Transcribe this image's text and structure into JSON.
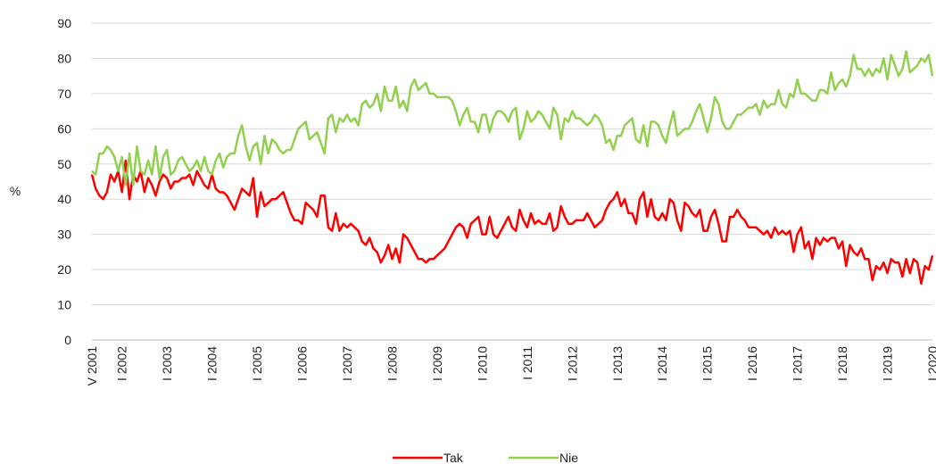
{
  "chart_data": {
    "type": "line",
    "y_label": "%",
    "categories": [
      "V 2001",
      null,
      null,
      null,
      null,
      null,
      null,
      null,
      "I 2002",
      null,
      null,
      null,
      null,
      null,
      null,
      null,
      null,
      null,
      null,
      null,
      "I 2003",
      null,
      null,
      null,
      null,
      null,
      null,
      null,
      null,
      null,
      null,
      null,
      "I 2004",
      null,
      null,
      null,
      null,
      null,
      null,
      null,
      null,
      null,
      null,
      null,
      "I 2005",
      null,
      null,
      null,
      null,
      null,
      null,
      null,
      null,
      null,
      null,
      null,
      "I 2006",
      null,
      null,
      null,
      null,
      null,
      null,
      null,
      null,
      null,
      null,
      null,
      "I 2007",
      null,
      null,
      null,
      null,
      null,
      null,
      null,
      null,
      null,
      null,
      null,
      "I 2008",
      null,
      null,
      null,
      null,
      null,
      null,
      null,
      null,
      null,
      null,
      null,
      "I 2009",
      null,
      null,
      null,
      null,
      null,
      null,
      null,
      null,
      null,
      null,
      null,
      "I 2010",
      null,
      null,
      null,
      null,
      null,
      null,
      null,
      null,
      null,
      null,
      null,
      "I 2011",
      null,
      null,
      null,
      null,
      null,
      null,
      null,
      null,
      null,
      null,
      null,
      "I 2012",
      null,
      null,
      null,
      null,
      null,
      null,
      null,
      null,
      null,
      null,
      null,
      "I 2013",
      null,
      null,
      null,
      null,
      null,
      null,
      null,
      null,
      null,
      null,
      null,
      "I 2014",
      null,
      null,
      null,
      null,
      null,
      null,
      null,
      null,
      null,
      null,
      null,
      "I 2015",
      null,
      null,
      null,
      null,
      null,
      null,
      null,
      null,
      null,
      null,
      null,
      "I 2016",
      null,
      null,
      null,
      null,
      null,
      null,
      null,
      null,
      null,
      null,
      null,
      "I 2017",
      null,
      null,
      null,
      null,
      null,
      null,
      null,
      null,
      null,
      null,
      null,
      "I 2018",
      null,
      null,
      null,
      null,
      null,
      null,
      null,
      null,
      null,
      null,
      null,
      "I 2019",
      null,
      null,
      null,
      null,
      null,
      null,
      null,
      null,
      null,
      null,
      null,
      "I 2020"
    ],
    "series": [
      {
        "name": "Tak",
        "color": "#ff0000",
        "values": [
          47,
          43,
          41,
          40,
          42,
          47,
          45,
          48,
          42,
          51,
          40,
          47,
          45,
          48,
          42,
          46,
          44,
          41,
          45,
          47,
          46,
          43,
          45,
          45,
          46,
          46,
          47,
          44,
          48,
          46,
          44,
          43,
          47,
          43,
          42,
          42,
          41,
          39,
          37,
          40,
          43,
          42,
          41,
          46,
          35,
          42,
          38,
          39,
          40,
          40,
          41,
          42,
          39,
          36,
          34,
          34,
          33,
          39,
          38,
          37,
          35,
          41,
          41,
          32,
          31,
          36,
          31,
          33,
          32,
          33,
          32,
          31,
          28,
          27,
          29,
          26,
          25,
          22,
          24,
          27,
          23,
          26,
          22,
          30,
          29,
          27,
          25,
          23,
          23,
          22,
          23,
          23,
          24,
          25,
          26,
          28,
          30,
          32,
          33,
          32,
          29,
          33,
          34,
          35,
          30,
          30,
          35,
          30,
          29,
          31,
          33,
          35,
          32,
          31,
          37,
          34,
          32,
          36,
          33,
          34,
          33,
          33,
          36,
          31,
          32,
          38,
          35,
          33,
          33,
          34,
          34,
          34,
          36,
          34,
          32,
          33,
          34,
          37,
          39,
          40,
          42,
          38,
          40,
          36,
          36,
          33,
          40,
          42,
          35,
          40,
          35,
          34,
          36,
          34,
          40,
          39,
          34,
          31,
          39,
          38,
          36,
          35,
          37,
          31,
          31,
          35,
          37,
          33,
          28,
          28,
          35,
          35,
          37,
          35,
          34,
          32,
          32,
          32,
          31,
          30,
          31,
          29,
          32,
          30,
          31,
          30,
          31,
          25,
          30,
          32,
          26,
          28,
          23,
          29,
          27,
          29,
          28,
          29,
          29,
          26,
          28,
          21,
          27,
          25,
          24,
          26,
          23,
          23,
          17,
          21,
          20,
          22,
          19,
          23,
          22,
          22,
          18,
          23,
          19,
          23,
          22,
          16,
          21,
          20,
          24
        ]
      },
      {
        "name": "Nie",
        "color": "#92d050",
        "values": [
          48,
          47,
          53,
          53,
          55,
          54,
          52,
          48,
          52,
          44,
          53,
          44,
          55,
          48,
          47,
          51,
          47,
          55,
          46,
          52,
          54,
          47,
          48,
          51,
          52,
          50,
          48,
          49,
          51,
          48,
          52,
          48,
          47,
          51,
          53,
          49,
          52,
          53,
          53,
          58,
          61,
          55,
          51,
          55,
          56,
          50,
          58,
          53,
          57,
          56,
          54,
          53,
          54,
          54,
          57,
          60,
          61,
          62,
          57,
          58,
          59,
          56,
          53,
          63,
          64,
          59,
          63,
          62,
          64,
          62,
          63,
          61,
          67,
          68,
          66,
          67,
          70,
          65,
          72,
          68,
          68,
          72,
          66,
          68,
          65,
          72,
          74,
          71,
          72,
          73,
          70,
          70,
          69,
          69,
          69,
          69,
          68,
          65,
          61,
          64,
          66,
          62,
          62,
          59,
          64,
          64,
          59,
          63,
          65,
          65,
          64,
          62,
          65,
          66,
          57,
          60,
          65,
          62,
          63,
          65,
          64,
          62,
          60,
          66,
          64,
          57,
          63,
          62,
          65,
          63,
          63,
          62,
          61,
          62,
          64,
          63,
          61,
          56,
          57,
          54,
          58,
          58,
          61,
          62,
          63,
          57,
          56,
          61,
          55,
          62,
          62,
          61,
          58,
          56,
          61,
          65,
          58,
          59,
          60,
          60,
          62,
          65,
          67,
          63,
          59,
          63,
          69,
          67,
          62,
          60,
          60,
          62,
          64,
          64,
          65,
          66,
          66,
          67,
          64,
          68,
          66,
          67,
          67,
          71,
          67,
          66,
          70,
          69,
          74,
          70,
          70,
          69,
          68,
          68,
          71,
          71,
          70,
          76,
          71,
          73,
          74,
          72,
          75,
          81,
          77,
          77,
          75,
          77,
          75,
          77,
          76,
          80,
          74,
          81,
          78,
          75,
          77,
          82,
          76,
          77,
          78,
          80,
          79,
          81,
          75
        ]
      }
    ],
    "ylim": [
      0,
      90
    ],
    "yticks": [
      0,
      10,
      20,
      30,
      40,
      50,
      60,
      70,
      80,
      90
    ],
    "grid": true,
    "legend": "bottom"
  }
}
